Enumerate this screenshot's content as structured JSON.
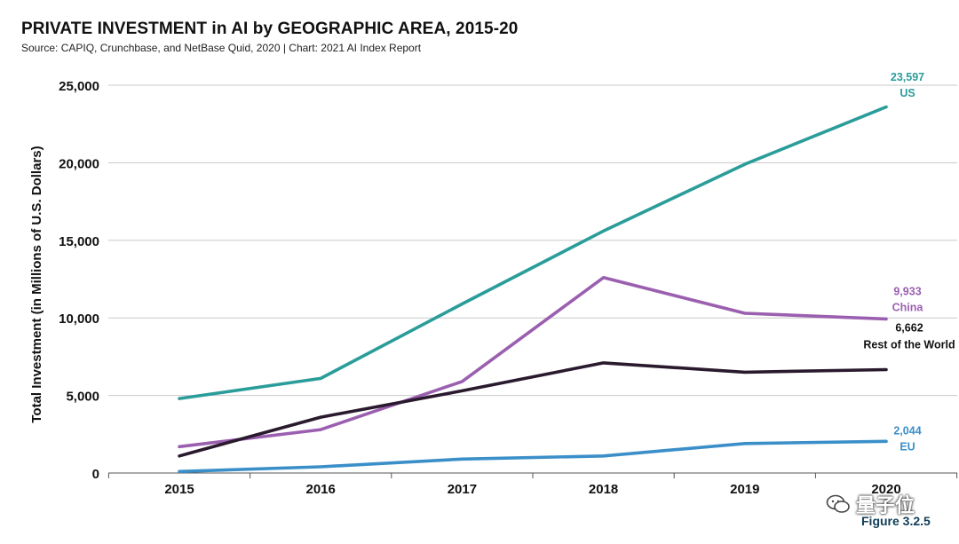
{
  "title": "PRIVATE INVESTMENT in AI by GEOGRAPHIC AREA, 2015-20",
  "source": "Source: CAPIQ, Crunchbase, and NetBase Quid, 2020 | Chart: 2021 AI Index Report",
  "figure": "Figure 3.2.5",
  "watermark": "量子位",
  "chart_data": {
    "type": "line",
    "title": "PRIVATE INVESTMENT in AI by GEOGRAPHIC AREA, 2015-20",
    "xlabel": "",
    "ylabel": "Total Investment (in Millions of U.S. Dollars)",
    "x": [
      "2015",
      "2016",
      "2017",
      "2018",
      "2019",
      "2020"
    ],
    "ylim": [
      0,
      25000
    ],
    "yticks": [
      0,
      5000,
      10000,
      15000,
      20000,
      25000
    ],
    "ytick_labels": [
      "0",
      "5,000",
      "10,000",
      "15,000",
      "20,000",
      "25,000"
    ],
    "grid": true,
    "series": [
      {
        "name": "US",
        "color": "#2a9d9a",
        "values": [
          4800,
          6100,
          10900,
          15600,
          19900,
          23597
        ],
        "end_label_value": "23,597",
        "end_label_name": "US"
      },
      {
        "name": "China",
        "color": "#9b5fb0",
        "values": [
          1700,
          2800,
          5900,
          12600,
          10300,
          9933
        ],
        "end_label_value": "9,933",
        "end_label_name": "China"
      },
      {
        "name": "Rest of the World",
        "color": "#2a1a2e",
        "values": [
          1100,
          3600,
          5300,
          7100,
          6500,
          6662
        ],
        "end_label_value": "6,662",
        "end_label_name": "Rest of the World"
      },
      {
        "name": "EU",
        "color": "#3b8fc9",
        "values": [
          100,
          400,
          900,
          1100,
          1900,
          2044
        ],
        "end_label_value": "2,044",
        "end_label_name": "EU"
      }
    ]
  }
}
